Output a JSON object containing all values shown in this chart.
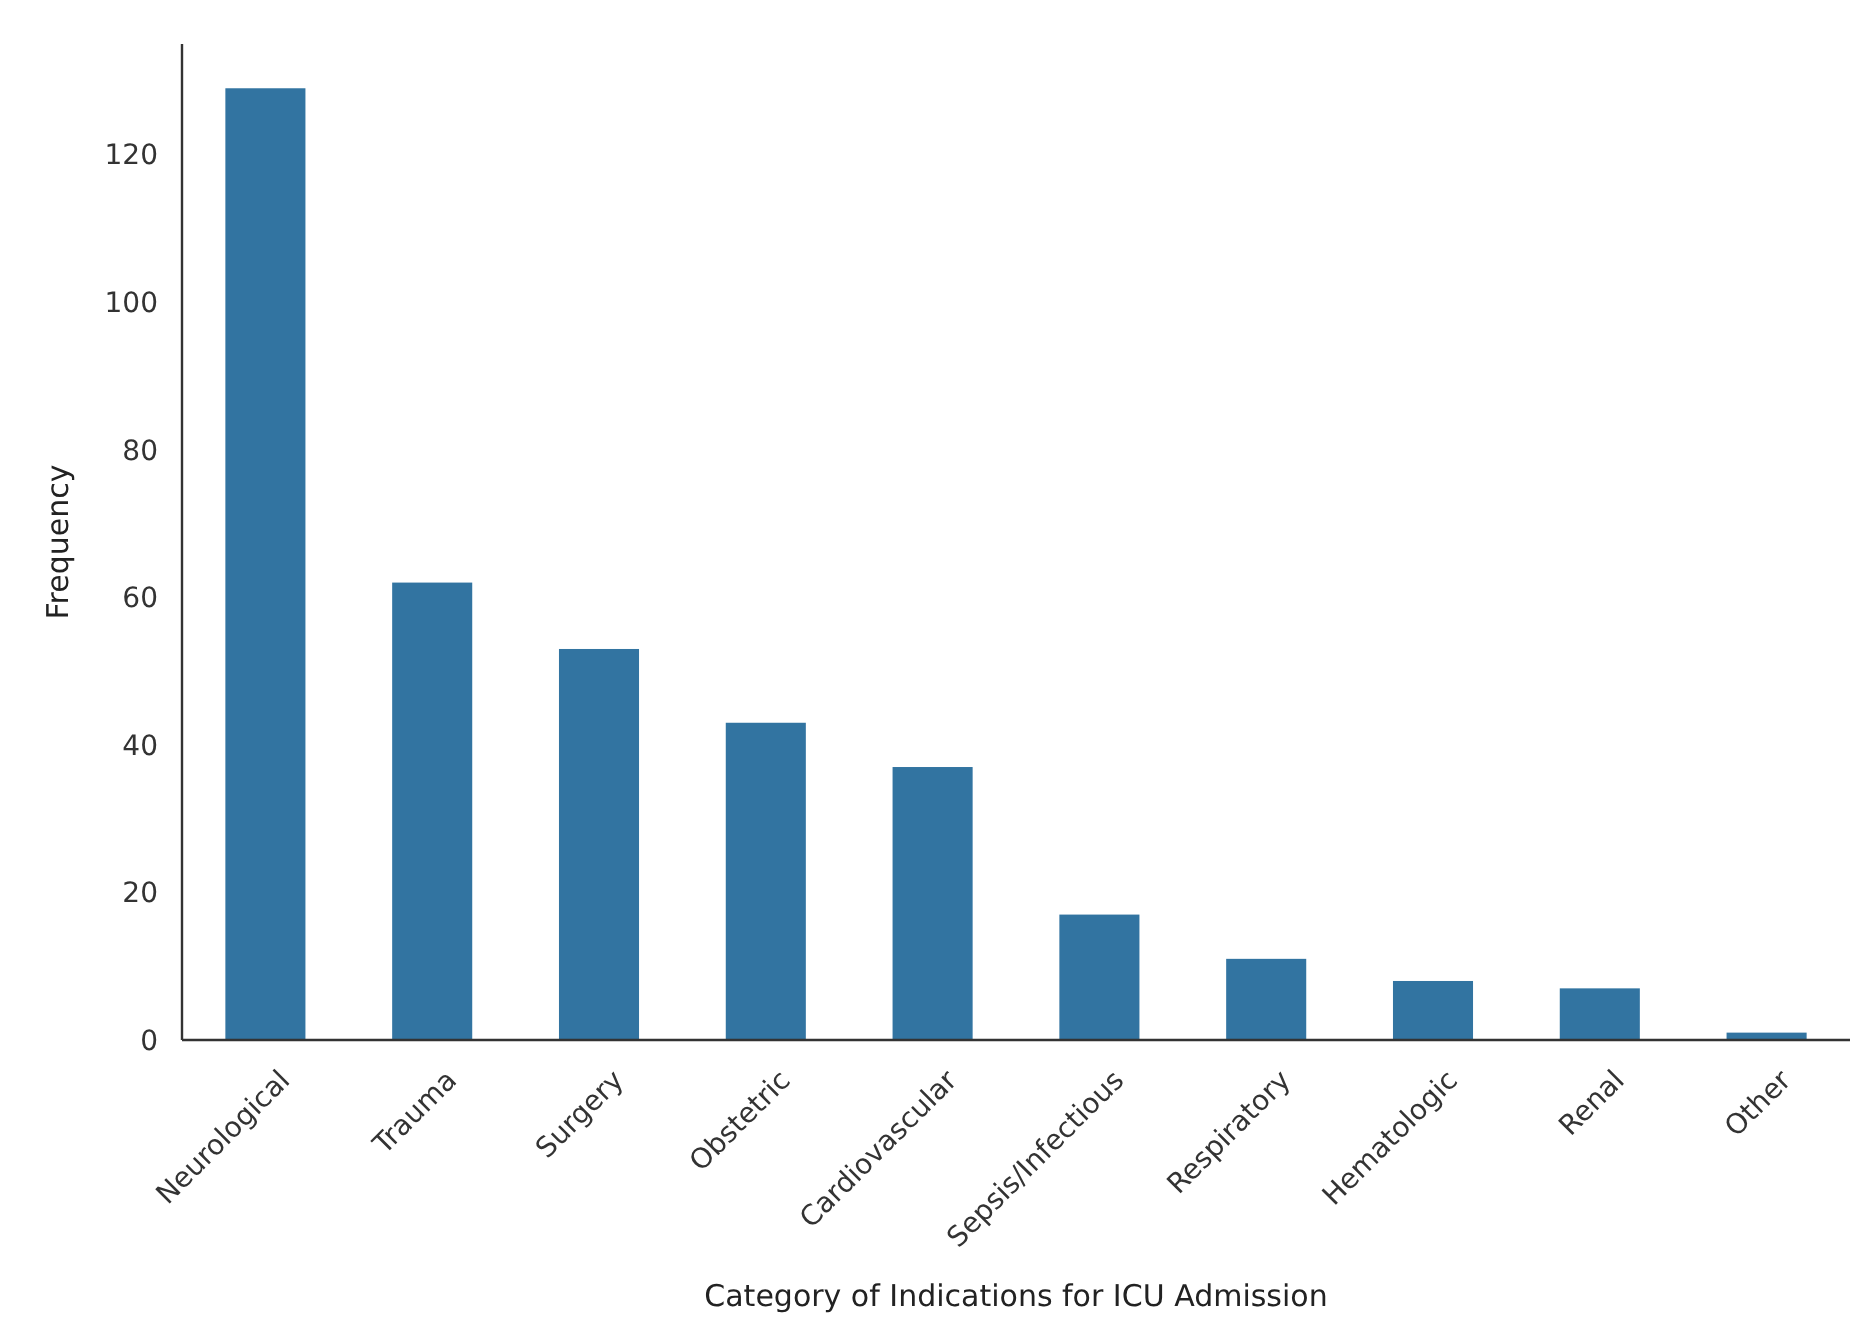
{
  "chart_data": {
    "type": "bar",
    "xlabel": "Category of Indications for ICU Admission",
    "ylabel": "Frequency",
    "categories": [
      "Neurological",
      "Trauma",
      "Surgery",
      "Obstetric",
      "Cardiovascular",
      "Sepsis/Infectious",
      "Respiratory",
      "Hematologic",
      "Renal",
      "Other"
    ],
    "values": [
      129,
      62,
      53,
      43,
      37,
      17,
      11,
      8,
      7,
      1
    ],
    "color": "#3274a1",
    "ylim": [
      0,
      135
    ],
    "yticks": [
      0,
      20,
      40,
      60,
      80,
      100,
      120
    ],
    "grid": false
  }
}
